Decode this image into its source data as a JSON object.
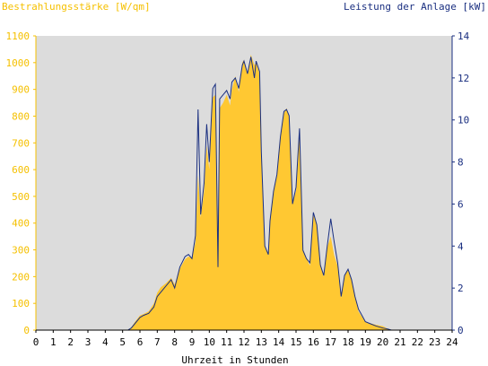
{
  "chart_data": {
    "type": "area",
    "title": "",
    "left_axis_title": "Bestrahlungsstärke [W/qm]",
    "right_axis_title": "Leistung der Anlage [kW]",
    "xlabel": "Uhrzeit in Stunden",
    "xlim": [
      0,
      24
    ],
    "x_ticks": [
      "0",
      "1",
      "2",
      "3",
      "4",
      "5",
      "6",
      "7",
      "8",
      "9",
      "10",
      "11",
      "12",
      "13",
      "14",
      "15",
      "16",
      "17",
      "18",
      "19",
      "20",
      "21",
      "22",
      "23",
      "24"
    ],
    "ylim_left": [
      0,
      1100
    ],
    "y_ticks_left": [
      "0",
      "100",
      "200",
      "300",
      "400",
      "500",
      "600",
      "700",
      "800",
      "900",
      "1000",
      "1100"
    ],
    "ylim_right": [
      0,
      14
    ],
    "y_ticks_right": [
      "0",
      "2",
      "4",
      "6",
      "8",
      "10",
      "12",
      "14"
    ],
    "grid": false,
    "plot_background": "#dcdcdc",
    "colors": {
      "irradiance_fill": "#ffc832",
      "power_line": "#1a2f80",
      "left_axis_text": "#f5c000",
      "right_axis_text": "#1a2f80"
    },
    "series": [
      {
        "name": "Bestrahlungsstärke [W/qm]",
        "axis": "left",
        "x": [
          0,
          5.3,
          5.5,
          5.7,
          6.0,
          6.2,
          6.5,
          6.8,
          7.0,
          7.2,
          7.5,
          7.8,
          8.0,
          8.3,
          8.6,
          8.8,
          9.0,
          9.2,
          9.35,
          9.5,
          9.7,
          9.85,
          10.0,
          10.2,
          10.35,
          10.5,
          10.6,
          10.8,
          11.0,
          11.2,
          11.3,
          11.5,
          11.7,
          11.9,
          12.0,
          12.2,
          12.4,
          12.6,
          12.7,
          12.9,
          13.0,
          13.2,
          13.4,
          13.5,
          13.7,
          13.9,
          14.1,
          14.3,
          14.45,
          14.6,
          14.8,
          15.0,
          15.2,
          15.4,
          15.6,
          15.8,
          16.0,
          16.2,
          16.4,
          16.6,
          16.8,
          17.0,
          17.2,
          17.4,
          17.6,
          17.8,
          18.0,
          18.2,
          18.4,
          18.6,
          18.8,
          19.0,
          19.3,
          19.6,
          20.0,
          20.3,
          20.5,
          20.7,
          24
        ],
        "values": [
          0,
          0,
          10,
          30,
          55,
          60,
          70,
          100,
          140,
          160,
          175,
          195,
          170,
          230,
          265,
          275,
          270,
          330,
          580,
          420,
          520,
          690,
          600,
          870,
          880,
          380,
          830,
          850,
          880,
          840,
          900,
          950,
          890,
          1000,
          1010,
          960,
          1030,
          990,
          1000,
          960,
          680,
          320,
          280,
          420,
          520,
          580,
          720,
          810,
          830,
          800,
          480,
          520,
          760,
          300,
          270,
          240,
          430,
          400,
          250,
          200,
          310,
          350,
          280,
          240,
          120,
          200,
          230,
          190,
          130,
          70,
          50,
          30,
          25,
          20,
          15,
          5,
          0,
          0,
          0
        ]
      },
      {
        "name": "Leistung der Anlage [kW]",
        "axis": "right",
        "x": [
          0,
          5.3,
          5.5,
          5.7,
          6.0,
          6.2,
          6.5,
          6.8,
          7.0,
          7.2,
          7.5,
          7.8,
          8.0,
          8.3,
          8.6,
          8.8,
          9.0,
          9.2,
          9.35,
          9.5,
          9.7,
          9.85,
          10.0,
          10.2,
          10.35,
          10.5,
          10.6,
          10.8,
          11.0,
          11.2,
          11.3,
          11.5,
          11.7,
          11.9,
          12.0,
          12.2,
          12.4,
          12.6,
          12.7,
          12.9,
          13.0,
          13.2,
          13.4,
          13.5,
          13.7,
          13.9,
          14.1,
          14.3,
          14.45,
          14.6,
          14.8,
          15.0,
          15.2,
          15.4,
          15.6,
          15.8,
          16.0,
          16.2,
          16.4,
          16.6,
          16.8,
          17.0,
          17.2,
          17.4,
          17.6,
          17.8,
          18.0,
          18.2,
          18.4,
          18.6,
          18.8,
          19.0,
          19.3,
          19.6,
          20.0,
          20.3,
          20.5,
          20.7,
          24
        ],
        "values": [
          0,
          0,
          0.1,
          0.3,
          0.6,
          0.7,
          0.8,
          1.1,
          1.6,
          1.8,
          2.1,
          2.4,
          2.0,
          3.0,
          3.5,
          3.6,
          3.4,
          4.5,
          10.5,
          5.5,
          7.0,
          9.8,
          8.0,
          11.5,
          11.7,
          3.0,
          11.0,
          11.2,
          11.4,
          11.0,
          11.8,
          12.0,
          11.5,
          12.6,
          12.8,
          12.2,
          13.0,
          12.0,
          12.8,
          12.3,
          8.5,
          4.0,
          3.6,
          5.2,
          6.6,
          7.4,
          9.2,
          10.4,
          10.5,
          10.2,
          6.0,
          6.8,
          9.6,
          3.8,
          3.4,
          3.2,
          5.6,
          5.0,
          3.1,
          2.6,
          4.0,
          5.3,
          4.2,
          3.2,
          1.6,
          2.6,
          2.9,
          2.4,
          1.6,
          1.0,
          0.7,
          0.4,
          0.3,
          0.2,
          0.1,
          0.05,
          0,
          0,
          0
        ]
      }
    ]
  }
}
